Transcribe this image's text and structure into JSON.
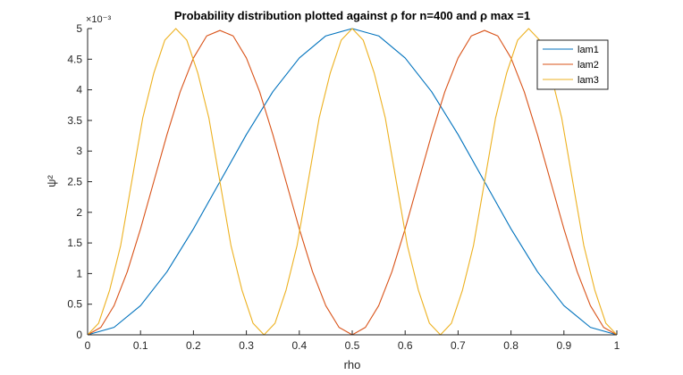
{
  "chart_data": {
    "type": "line",
    "title": "Probability distribution plotted against ρ for n=400 and ρ max =1",
    "xlabel": "rho",
    "ylabel": "ψ²",
    "y_exponent_label": "×10⁻³",
    "xlim": [
      0,
      1
    ],
    "ylim": [
      0,
      5
    ],
    "x_ticks": [
      0,
      0.1,
      0.2,
      0.3,
      0.4,
      0.5,
      0.6,
      0.7,
      0.8,
      0.9,
      1
    ],
    "x_tick_labels": [
      "0",
      "0.1",
      "0.2",
      "0.3",
      "0.4",
      "0.5",
      "0.6",
      "0.7",
      "0.8",
      "0.9",
      "1"
    ],
    "y_ticks": [
      0,
      0.5,
      1,
      1.5,
      2,
      2.5,
      3,
      3.5,
      4,
      4.5,
      5
    ],
    "y_tick_labels": [
      "0",
      "0.5",
      "1",
      "1.5",
      "2",
      "2.5",
      "3",
      "3.5",
      "4",
      "4.5",
      "5"
    ],
    "grid": false,
    "legend_position": "top-right",
    "series": [
      {
        "name": "lam1",
        "color": "#0072BD",
        "x": [
          0,
          0.05,
          0.1,
          0.15,
          0.2,
          0.25,
          0.3,
          0.35,
          0.4,
          0.45,
          0.5,
          0.55,
          0.6,
          0.65,
          0.7,
          0.75,
          0.8,
          0.85,
          0.9,
          0.95,
          1
        ],
        "y": [
          0,
          0.122,
          0.477,
          1.03,
          1.73,
          2.5,
          3.27,
          3.97,
          4.52,
          4.88,
          5.0,
          4.88,
          4.52,
          3.97,
          3.27,
          2.5,
          1.73,
          1.03,
          0.477,
          0.122,
          0
        ]
      },
      {
        "name": "lam2",
        "color": "#D95319",
        "x": [
          0,
          0.025,
          0.05,
          0.075,
          0.1,
          0.125,
          0.15,
          0.175,
          0.2,
          0.225,
          0.25,
          0.275,
          0.3,
          0.325,
          0.35,
          0.375,
          0.4,
          0.425,
          0.45,
          0.475,
          0.5,
          0.525,
          0.55,
          0.575,
          0.6,
          0.625,
          0.65,
          0.675,
          0.7,
          0.725,
          0.75,
          0.775,
          0.8,
          0.825,
          0.85,
          0.875,
          0.9,
          0.925,
          0.95,
          0.975,
          1
        ],
        "y": [
          0,
          0.122,
          0.477,
          1.03,
          1.73,
          2.5,
          3.27,
          3.97,
          4.52,
          4.88,
          4.97,
          4.88,
          4.52,
          3.97,
          3.27,
          2.5,
          1.73,
          1.03,
          0.477,
          0.122,
          0,
          0.122,
          0.477,
          1.03,
          1.73,
          2.5,
          3.27,
          3.97,
          4.52,
          4.88,
          4.97,
          4.88,
          4.52,
          3.97,
          3.27,
          2.5,
          1.73,
          1.03,
          0.477,
          0.122,
          0
        ]
      },
      {
        "name": "lam3",
        "color": "#EDB120",
        "x": [
          0,
          0.02083,
          0.04167,
          0.0625,
          0.08333,
          0.10417,
          0.125,
          0.14583,
          0.16667,
          0.1875,
          0.20833,
          0.22917,
          0.25,
          0.27083,
          0.29167,
          0.3125,
          0.33333,
          0.35417,
          0.375,
          0.39583,
          0.41667,
          0.4375,
          0.45833,
          0.47917,
          0.5,
          0.52083,
          0.54167,
          0.5625,
          0.58333,
          0.60417,
          0.625,
          0.64583,
          0.66667,
          0.6875,
          0.70833,
          0.72917,
          0.75,
          0.77083,
          0.79167,
          0.8125,
          0.83333,
          0.85417,
          0.875,
          0.89583,
          0.91667,
          0.9375,
          0.95833,
          0.97917,
          1
        ],
        "y": [
          0,
          0.19,
          0.73,
          1.46,
          2.5,
          3.54,
          4.27,
          4.81,
          5.0,
          4.81,
          4.27,
          3.54,
          2.5,
          1.46,
          0.73,
          0.19,
          0,
          0.19,
          0.73,
          1.46,
          2.5,
          3.54,
          4.27,
          4.81,
          5.0,
          4.81,
          4.27,
          3.54,
          2.5,
          1.46,
          0.73,
          0.19,
          0,
          0.19,
          0.73,
          1.46,
          2.5,
          3.54,
          4.27,
          4.81,
          5.0,
          4.81,
          4.27,
          3.54,
          2.5,
          1.46,
          0.73,
          0.19,
          0
        ]
      }
    ]
  }
}
